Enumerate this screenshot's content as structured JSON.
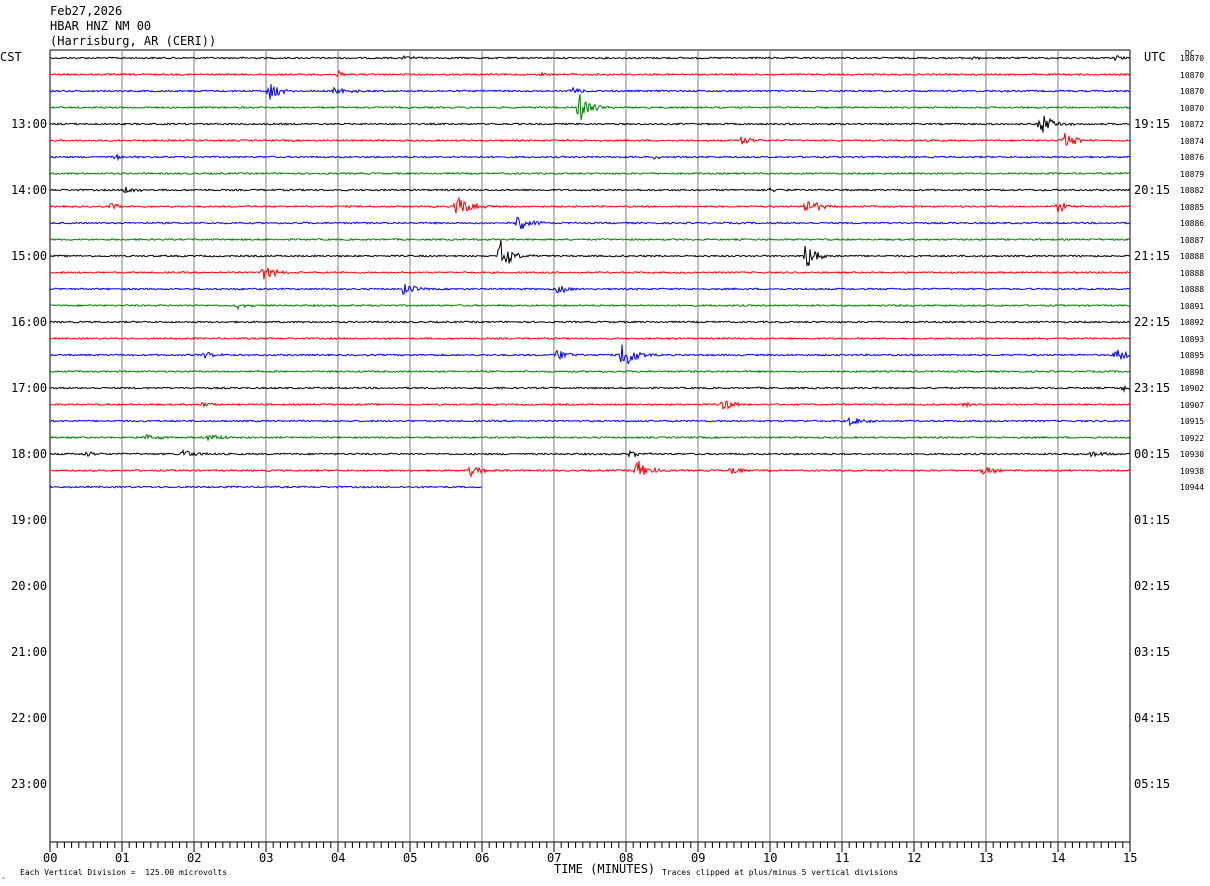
{
  "header": {
    "date": "Feb27,2026",
    "station": "HBAR HNZ NM 00",
    "location": "(Harrisburg, AR (CERI))"
  },
  "left_zone": "CST",
  "right_zone": "UTC",
  "dc_label": "DC",
  "left_hour_labels": [
    "13:00",
    "14:00",
    "15:00",
    "16:00",
    "17:00",
    "18:00",
    "19:00",
    "20:00",
    "21:00",
    "22:00",
    "23:00"
  ],
  "right_hour_labels": [
    "19:15",
    "20:15",
    "21:15",
    "22:15",
    "23:15",
    "00:15",
    "01:15",
    "02:15",
    "03:15",
    "04:15",
    "05:15"
  ],
  "minute_labels": [
    "00",
    "01",
    "02",
    "03",
    "04",
    "05",
    "06",
    "07",
    "08",
    "09",
    "10",
    "11",
    "12",
    "13",
    "14",
    "15"
  ],
  "footer": {
    "x_axis_title": "TIME (MINUTES)",
    "scale_note": "Each Vertical Division =  125.00 microvolts",
    "clip_note": "Traces clipped at plus/minus 5 vertical divisions",
    "corner_mark": "‸"
  },
  "colors": {
    "trace_cycle": [
      "#000000",
      "#ff0000",
      "#0000ff",
      "#008000"
    ],
    "grid": "#808080",
    "background": "#ffffff"
  },
  "chart_data": {
    "type": "line",
    "title": "HBAR HNZ NM 00",
    "xlabel": "TIME (MINUTES)",
    "x_range": [
      0,
      15
    ],
    "trace_interval_minutes": 15,
    "dc_offsets": [
      10870,
      10870,
      10870,
      10870,
      10872,
      10874,
      10876,
      10879,
      10882,
      10885,
      10886,
      10887,
      10888,
      10888,
      10888,
      10891,
      10892,
      10893,
      10895,
      10898,
      10902,
      10907,
      10915,
      10922,
      10930,
      10938,
      10944
    ],
    "last_trace_end_minute": 6.0,
    "events": [
      {
        "trace": 0,
        "minute": 4.9,
        "amp": 0.2
      },
      {
        "trace": 0,
        "minute": 12.8,
        "amp": 0.2
      },
      {
        "trace": 0,
        "minute": 14.8,
        "amp": 0.2
      },
      {
        "trace": 1,
        "minute": 4.0,
        "amp": 0.3
      },
      {
        "trace": 1,
        "minute": 6.8,
        "amp": 0.2
      },
      {
        "trace": 2,
        "minute": 3.05,
        "amp": 0.9
      },
      {
        "trace": 2,
        "minute": 3.95,
        "amp": 0.6
      },
      {
        "trace": 2,
        "minute": 7.25,
        "amp": 0.4
      },
      {
        "trace": 3,
        "minute": 7.35,
        "amp": 1.6
      },
      {
        "trace": 4,
        "minute": 13.75,
        "amp": 1.2
      },
      {
        "trace": 5,
        "minute": 9.6,
        "amp": 0.5
      },
      {
        "trace": 5,
        "minute": 14.1,
        "amp": 0.9
      },
      {
        "trace": 6,
        "minute": 0.9,
        "amp": 0.3
      },
      {
        "trace": 6,
        "minute": 8.4,
        "amp": 0.2
      },
      {
        "trace": 8,
        "minute": 1.05,
        "amp": 0.4
      },
      {
        "trace": 8,
        "minute": 10.0,
        "amp": 0.2
      },
      {
        "trace": 9,
        "minute": 0.85,
        "amp": 0.3
      },
      {
        "trace": 9,
        "minute": 5.65,
        "amp": 1.4
      },
      {
        "trace": 9,
        "minute": 10.5,
        "amp": 1.0
      },
      {
        "trace": 9,
        "minute": 14.0,
        "amp": 0.6
      },
      {
        "trace": 10,
        "minute": 6.5,
        "amp": 0.9
      },
      {
        "trace": 12,
        "minute": 6.25,
        "amp": 1.7
      },
      {
        "trace": 12,
        "minute": 10.5,
        "amp": 1.5
      },
      {
        "trace": 13,
        "minute": 2.95,
        "amp": 0.9
      },
      {
        "trace": 14,
        "minute": 4.9,
        "amp": 0.7
      },
      {
        "trace": 14,
        "minute": 7.05,
        "amp": 0.5
      },
      {
        "trace": 15,
        "minute": 2.6,
        "amp": 0.3
      },
      {
        "trace": 18,
        "minute": 2.15,
        "amp": 0.3
      },
      {
        "trace": 18,
        "minute": 7.05,
        "amp": 0.7
      },
      {
        "trace": 18,
        "minute": 7.95,
        "amp": 1.9
      },
      {
        "trace": 18,
        "minute": 14.8,
        "amp": 0.8
      },
      {
        "trace": 20,
        "minute": 14.9,
        "amp": 0.4
      },
      {
        "trace": 21,
        "minute": 2.1,
        "amp": 0.3
      },
      {
        "trace": 21,
        "minute": 9.35,
        "amp": 0.6
      },
      {
        "trace": 21,
        "minute": 12.7,
        "amp": 0.3
      },
      {
        "trace": 22,
        "minute": 11.1,
        "amp": 0.6
      },
      {
        "trace": 23,
        "minute": 1.3,
        "amp": 0.4
      },
      {
        "trace": 23,
        "minute": 2.2,
        "amp": 0.5
      },
      {
        "trace": 24,
        "minute": 0.5,
        "amp": 0.3
      },
      {
        "trace": 24,
        "minute": 1.85,
        "amp": 0.5
      },
      {
        "trace": 24,
        "minute": 8.05,
        "amp": 0.3
      },
      {
        "trace": 24,
        "minute": 14.45,
        "amp": 0.4
      },
      {
        "trace": 25,
        "minute": 5.85,
        "amp": 0.6
      },
      {
        "trace": 25,
        "minute": 8.15,
        "amp": 1.2
      },
      {
        "trace": 25,
        "minute": 9.45,
        "amp": 0.5
      },
      {
        "trace": 25,
        "minute": 12.95,
        "amp": 0.5
      }
    ]
  }
}
